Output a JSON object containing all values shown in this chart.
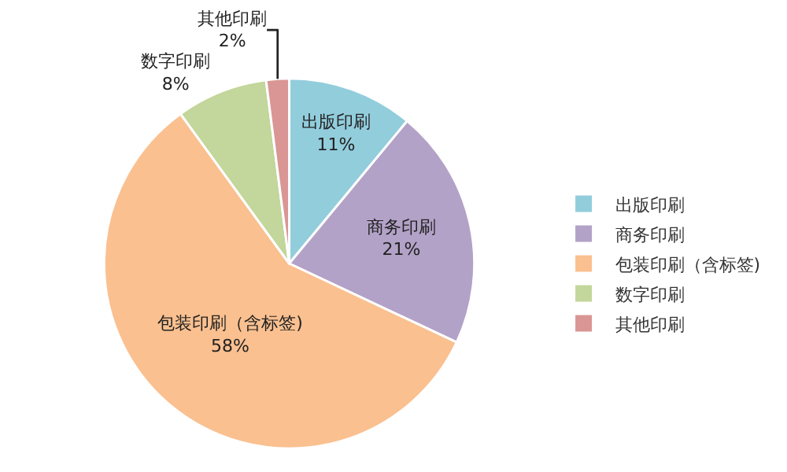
{
  "chart_data": {
    "type": "pie",
    "categories": [
      "出版印刷",
      "商务印刷",
      "包装印刷（含标签)",
      "数字印刷",
      "其他印刷"
    ],
    "values": [
      11,
      21,
      58,
      8,
      2
    ],
    "value_labels": [
      "11%",
      "21%",
      "58%",
      "8%",
      "2%"
    ],
    "colors": [
      "#92cddc",
      "#b3a2c7",
      "#fac090",
      "#c3d69b",
      "#d99694"
    ],
    "legend": "right"
  }
}
